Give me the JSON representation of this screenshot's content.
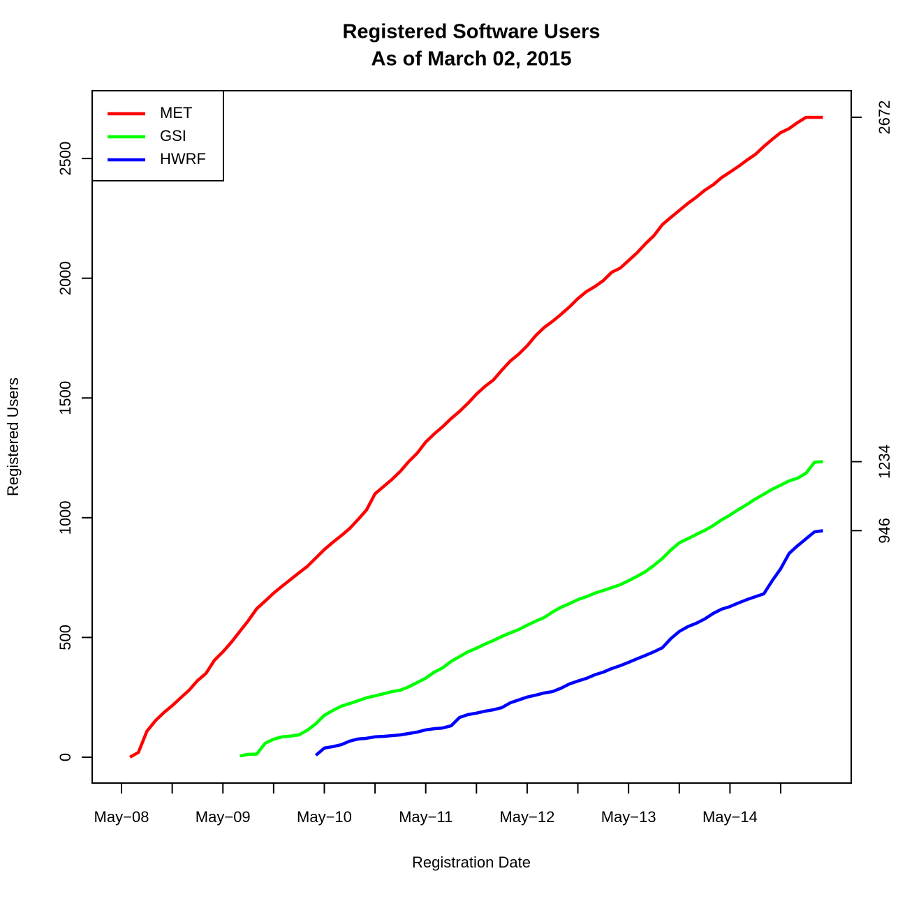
{
  "chart_data": {
    "type": "line",
    "title": "Registered Software Users",
    "subtitle": "As of March 02, 2015",
    "x_label": "Registration Date",
    "y_label": "Registered Users",
    "categories": [
      "May−08",
      null,
      null,
      null,
      null,
      null,
      null,
      null,
      null,
      null,
      null,
      null,
      "May−09",
      null,
      null,
      null,
      null,
      null,
      null,
      null,
      null,
      null,
      null,
      null,
      "May−10",
      null,
      null,
      null,
      null,
      null,
      null,
      null,
      null,
      null,
      null,
      null,
      "May−11",
      null,
      null,
      null,
      null,
      null,
      null,
      null,
      null,
      null,
      null,
      null,
      "May−12",
      null,
      null,
      null,
      null,
      null,
      null,
      null,
      null,
      null,
      null,
      null,
      "May−13",
      null,
      null,
      null,
      null,
      null,
      null,
      null,
      null,
      null,
      null,
      null,
      "May−14",
      null,
      null,
      null,
      null,
      null,
      null,
      null,
      null,
      null,
      null,
      null
    ],
    "series": [
      {
        "name": "MET",
        "color": "#ff0000",
        "values": [
          null,
          0,
          20,
          108,
          152,
          186,
          215,
          248,
          280,
          320,
          350,
          405,
          440,
          480,
          525,
          570,
          620,
          652,
          685,
          714,
          742,
          770,
          797,
          832,
          867,
          897,
          925,
          955,
          993,
          1033,
          1100,
          1130,
          1160,
          1194,
          1235,
          1270,
          1316,
          1350,
          1380,
          1414,
          1444,
          1478,
          1516,
          1548,
          1575,
          1616,
          1654,
          1683,
          1718,
          1760,
          1794,
          1820,
          1849,
          1880,
          1915,
          1944,
          1965,
          1990,
          2025,
          2042,
          2074,
          2106,
          2144,
          2178,
          2224,
          2254,
          2283,
          2312,
          2338,
          2367,
          2390,
          2420,
          2443,
          2467,
          2493,
          2517,
          2550,
          2580,
          2608,
          2625,
          2650,
          2672,
          2672,
          2672
        ]
      },
      {
        "name": "GSI",
        "color": "#00ff00",
        "values": [
          null,
          null,
          null,
          null,
          null,
          null,
          null,
          null,
          null,
          null,
          null,
          null,
          null,
          null,
          5,
          12,
          13,
          58,
          75,
          85,
          88,
          93,
          113,
          140,
          175,
          195,
          213,
          224,
          236,
          248,
          256,
          265,
          274,
          280,
          294,
          312,
          330,
          355,
          373,
          400,
          420,
          440,
          455,
          472,
          487,
          504,
          519,
          533,
          551,
          568,
          583,
          606,
          626,
          641,
          658,
          670,
          685,
          696,
          708,
          720,
          737,
          755,
          775,
          801,
          830,
          865,
          895,
          912,
          930,
          947,
          967,
          991,
          1011,
          1034,
          1055,
          1078,
          1098,
          1119,
          1136,
          1154,
          1165,
          1186,
          1232,
          1234
        ]
      },
      {
        "name": "HWRF",
        "color": "#0000ff",
        "values": [
          null,
          null,
          null,
          null,
          null,
          null,
          null,
          null,
          null,
          null,
          null,
          null,
          null,
          null,
          null,
          null,
          null,
          null,
          null,
          null,
          null,
          null,
          null,
          8,
          38,
          44,
          52,
          67,
          76,
          79,
          85,
          87,
          90,
          93,
          99,
          105,
          114,
          119,
          122,
          131,
          166,
          178,
          184,
          192,
          198,
          207,
          227,
          239,
          251,
          259,
          268,
          274,
          288,
          306,
          318,
          329,
          344,
          355,
          370,
          382,
          396,
          411,
          425,
          440,
          457,
          495,
          525,
          545,
          559,
          577,
          600,
          618,
          629,
          644,
          658,
          670,
          682,
          737,
          787,
          851,
          883,
          912,
          941,
          946
        ]
      }
    ],
    "ylim": [
      -108,
      2783
    ],
    "yticks": [
      0,
      500,
      1000,
      1500,
      2000,
      2500
    ],
    "y2lim": [
      -108,
      2783
    ],
    "y2ticks": [
      946,
      1234,
      2672
    ],
    "legend": "top-left"
  }
}
